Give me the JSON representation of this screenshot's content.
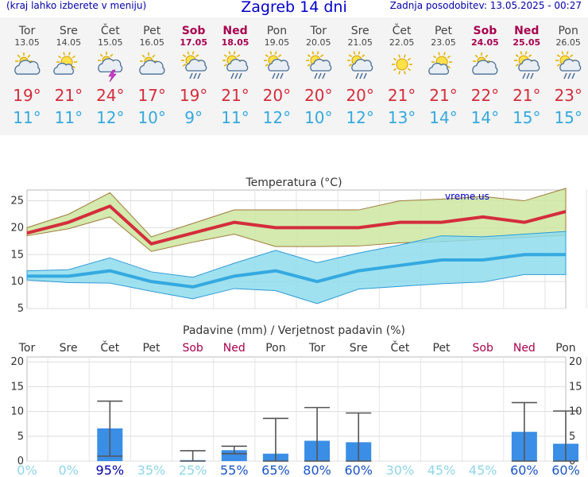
{
  "header": {
    "note": "(kraj lahko izberete v meniju)",
    "title": "Zagreb 14 dni",
    "updated": "Zadnja posodobitev: 13.05.2025 - 00:27"
  },
  "days": [
    {
      "name": "Tor",
      "date": "13.05",
      "weekend": false,
      "icon": "partly-cloudy-icon",
      "tmax": "19°",
      "tmin": "11°"
    },
    {
      "name": "Sre",
      "date": "14.05",
      "weekend": false,
      "icon": "sun-cloud-icon",
      "tmax": "21°",
      "tmin": "11°"
    },
    {
      "name": "Čet",
      "date": "15.05",
      "weekend": false,
      "icon": "thunderstorm-icon",
      "tmax": "24°",
      "tmin": "12°"
    },
    {
      "name": "Pet",
      "date": "16.05",
      "weekend": false,
      "icon": "partly-cloudy-icon",
      "tmax": "17°",
      "tmin": "10°"
    },
    {
      "name": "Sob",
      "date": "17.05",
      "weekend": true,
      "icon": "sun-rain-icon",
      "tmax": "19°",
      "tmin": "9°"
    },
    {
      "name": "Ned",
      "date": "18.05",
      "weekend": true,
      "icon": "sun-rain-icon",
      "tmax": "21°",
      "tmin": "11°"
    },
    {
      "name": "Pon",
      "date": "19.05",
      "weekend": false,
      "icon": "sun-rain-icon",
      "tmax": "20°",
      "tmin": "12°"
    },
    {
      "name": "Tor",
      "date": "20.05",
      "weekend": false,
      "icon": "sun-rain-icon",
      "tmax": "20°",
      "tmin": "10°"
    },
    {
      "name": "Sre",
      "date": "21.05",
      "weekend": false,
      "icon": "sun-rain-icon",
      "tmax": "20°",
      "tmin": "12°"
    },
    {
      "name": "Čet",
      "date": "22.05",
      "weekend": false,
      "icon": "sun-icon",
      "tmax": "21°",
      "tmin": "13°"
    },
    {
      "name": "Pet",
      "date": "23.05",
      "weekend": false,
      "icon": "sun-cloud-icon",
      "tmax": "21°",
      "tmin": "14°"
    },
    {
      "name": "Sob",
      "date": "24.05",
      "weekend": true,
      "icon": "partly-cloudy-icon",
      "tmax": "22°",
      "tmin": "14°"
    },
    {
      "name": "Ned",
      "date": "25.05",
      "weekend": true,
      "icon": "sun-rain-icon",
      "tmax": "21°",
      "tmin": "15°"
    },
    {
      "name": "Pon",
      "date": "26.05",
      "weekend": false,
      "icon": "sun-rain-icon",
      "tmax": "23°",
      "tmin": "15°"
    }
  ],
  "colors": {
    "tmax": "#d42d3c",
    "tmin": "#35a9e0",
    "tmax_band": "#cde6a0",
    "tmin_band": "#8edcec",
    "precip": "#3a8ee6",
    "weekend": "#a8004f"
  },
  "chart_data": [
    {
      "type": "line",
      "title": "Temperatura (°C)",
      "watermark": "vreme.us",
      "ylim": [
        5,
        27
      ],
      "yticks": [
        5,
        10,
        15,
        20,
        25
      ],
      "x": [
        "13.05",
        "14.05",
        "15.05",
        "16.05",
        "17.05",
        "18.05",
        "19.05",
        "20.05",
        "21.05",
        "22.05",
        "23.05",
        "24.05",
        "25.05",
        "26.05"
      ],
      "series": [
        {
          "values": [
            19,
            21,
            24,
            17,
            19,
            21,
            20,
            20,
            20,
            21,
            21,
            22,
            21,
            23
          ]
        },
        {
          "values": [
            11,
            11,
            12,
            10,
            9,
            11,
            12,
            10,
            12,
            13,
            14,
            14,
            15,
            15
          ]
        }
      ],
      "tmax_band_high": [
        20,
        22.5,
        26.5,
        18.3,
        20.8,
        23.3,
        23.3,
        23.3,
        23.3,
        25.0,
        25.3,
        25.8,
        25.0,
        27.3
      ],
      "tmax_band_low": [
        18.5,
        19.8,
        22,
        15.6,
        17.3,
        18.8,
        16.5,
        16.5,
        16.6,
        17.2,
        17.4,
        17.8,
        18.2,
        18.6
      ],
      "tmin_band_high": [
        12.0,
        12.2,
        14.4,
        11.8,
        10.8,
        13.4,
        15.8,
        13.5,
        15.3,
        16.8,
        18.5,
        18.3,
        18.8,
        19.3
      ],
      "tmin_band_low": [
        10.3,
        9.8,
        9.7,
        8.2,
        6.8,
        8.7,
        8.3,
        5.9,
        8.6,
        9.1,
        9.6,
        9.9,
        11.3,
        11.3
      ]
    },
    {
      "type": "bar",
      "title": "Padavine (mm) / Verjetnost padavin (%)",
      "ylim": [
        0,
        21
      ],
      "yticks": [
        0,
        5,
        10,
        15,
        20
      ],
      "categories": [
        "Tor",
        "Sre",
        "Čet",
        "Pet",
        "Sob",
        "Ned",
        "Pon",
        "Tor",
        "Sre",
        "Čet",
        "Pet",
        "Sob",
        "Ned",
        "Pon"
      ],
      "weekend": [
        false,
        false,
        false,
        false,
        true,
        true,
        false,
        false,
        false,
        false,
        false,
        true,
        true,
        false
      ],
      "values": [
        0,
        0,
        6.6,
        0,
        0.2,
        2.2,
        1.5,
        4.1,
        3.8,
        0,
        0,
        0,
        5.9,
        3.5
      ],
      "range_low": [
        null,
        null,
        1.0,
        null,
        0,
        1.5,
        0,
        0,
        0,
        null,
        null,
        null,
        0,
        0
      ],
      "range_high": [
        null,
        null,
        12.1,
        null,
        2.1,
        3.0,
        8.6,
        10.8,
        9.7,
        null,
        null,
        null,
        11.8,
        10.1
      ],
      "probability": [
        "0%",
        "0%",
        "95%",
        "35%",
        "25%",
        "55%",
        "65%",
        "80%",
        "60%",
        "30%",
        "45%",
        "45%",
        "60%",
        "60%"
      ]
    }
  ]
}
